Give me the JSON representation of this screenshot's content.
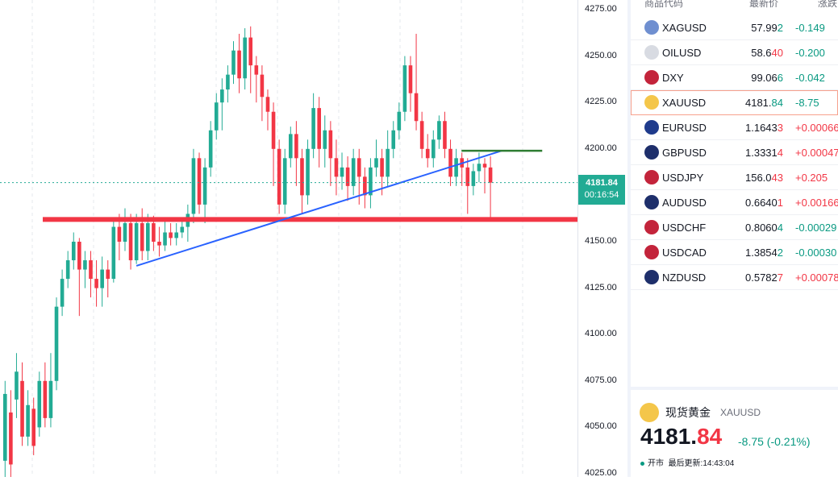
{
  "chart": {
    "price_axis": [
      "4275.00",
      "4250.00",
      "4225.00",
      "4200.00",
      "4175.00",
      "4150.00",
      "4125.00",
      "4100.00",
      "4075.00",
      "4050.00",
      "4025.00"
    ],
    "current_price": "4181.84",
    "countdown": "00:16:54",
    "colors": {
      "up": "#f23645",
      "down": "#22ab94",
      "support": "#f23645",
      "trendline": "#2962ff",
      "resistance": "#2e7d32"
    },
    "support_level": 4162,
    "resistance_level": 4199,
    "trendline": {
      "from": {
        "bar": 23,
        "price": 4137
      },
      "to": {
        "bar": 87,
        "price": 4199
      }
    },
    "candles": [
      [
        4032,
        4068,
        4018,
        4075
      ],
      [
        4058,
        4030,
        4020,
        4070
      ],
      [
        4065,
        4080,
        4055,
        4090
      ],
      [
        4075,
        4045,
        4040,
        4085
      ],
      [
        4045,
        4062,
        4040,
        4070
      ],
      [
        4060,
        4040,
        4035,
        4066
      ],
      [
        4050,
        4075,
        4045,
        4080
      ],
      [
        4075,
        4055,
        4050,
        4085
      ],
      [
        4055,
        4075,
        4050,
        4090
      ],
      [
        4075,
        4115,
        4070,
        4120
      ],
      [
        4115,
        4130,
        4110,
        4135
      ],
      [
        4130,
        4140,
        4125,
        4145
      ],
      [
        4140,
        4150,
        4135,
        4155
      ],
      [
        4150,
        4135,
        4110,
        4152
      ],
      [
        4135,
        4140,
        4125,
        4145
      ],
      [
        4140,
        4130,
        4120,
        4145
      ],
      [
        4130,
        4125,
        4115,
        4140
      ],
      [
        4125,
        4135,
        4115,
        4142
      ],
      [
        4135,
        4130,
        4120,
        4140
      ],
      [
        4130,
        4158,
        4128,
        4162
      ],
      [
        4158,
        4150,
        4140,
        4165
      ],
      [
        4150,
        4160,
        4145,
        4168
      ],
      [
        4160,
        4140,
        4135,
        4165
      ],
      [
        4140,
        4160,
        4138,
        4165
      ],
      [
        4160,
        4145,
        4140,
        4168
      ],
      [
        4145,
        4160,
        4140,
        4165
      ],
      [
        4160,
        4150,
        4145,
        4164
      ],
      [
        4150,
        4148,
        4142,
        4158
      ],
      [
        4148,
        4155,
        4145,
        4162
      ],
      [
        4155,
        4152,
        4148,
        4160
      ],
      [
        4152,
        4155,
        4148,
        4160
      ],
      [
        4155,
        4158,
        4152,
        4162
      ],
      [
        4158,
        4165,
        4150,
        4170
      ],
      [
        4165,
        4195,
        4160,
        4200
      ],
      [
        4195,
        4170,
        4165,
        4198
      ],
      [
        4170,
        4190,
        4160,
        4195
      ],
      [
        4190,
        4210,
        4185,
        4215
      ],
      [
        4210,
        4225,
        4205,
        4230
      ],
      [
        4225,
        4232,
        4210,
        4238
      ],
      [
        4232,
        4240,
        4225,
        4245
      ],
      [
        4240,
        4253,
        4235,
        4258
      ],
      [
        4253,
        4238,
        4230,
        4262
      ],
      [
        4238,
        4260,
        4232,
        4265
      ],
      [
        4260,
        4245,
        4230,
        4266
      ],
      [
        4245,
        4240,
        4225,
        4250
      ],
      [
        4240,
        4228,
        4215,
        4245
      ],
      [
        4228,
        4220,
        4210,
        4232
      ],
      [
        4220,
        4200,
        4180,
        4225
      ],
      [
        4200,
        4170,
        4165,
        4205
      ],
      [
        4170,
        4195,
        4165,
        4200
      ],
      [
        4195,
        4208,
        4190,
        4212
      ],
      [
        4208,
        4195,
        4180,
        4215
      ],
      [
        4195,
        4175,
        4165,
        4200
      ],
      [
        4175,
        4200,
        4170,
        4205
      ],
      [
        4200,
        4222,
        4195,
        4230
      ],
      [
        4222,
        4200,
        4190,
        4228
      ],
      [
        4200,
        4210,
        4190,
        4218
      ],
      [
        4210,
        4195,
        4180,
        4215
      ],
      [
        4195,
        4185,
        4175,
        4205
      ],
      [
        4185,
        4190,
        4178,
        4198
      ],
      [
        4190,
        4180,
        4172,
        4196
      ],
      [
        4180,
        4195,
        4175,
        4200
      ],
      [
        4195,
        4185,
        4170,
        4200
      ],
      [
        4185,
        4175,
        4168,
        4190
      ],
      [
        4175,
        4190,
        4168,
        4195
      ],
      [
        4190,
        4195,
        4185,
        4205
      ],
      [
        4195,
        4185,
        4175,
        4200
      ],
      [
        4185,
        4200,
        4180,
        4210
      ],
      [
        4200,
        4210,
        4195,
        4215
      ],
      [
        4210,
        4220,
        4205,
        4225
      ],
      [
        4220,
        4245,
        4215,
        4250
      ],
      [
        4245,
        4230,
        4220,
        4250
      ],
      [
        4230,
        4215,
        4210,
        4262
      ],
      [
        4215,
        4200,
        4195,
        4220
      ],
      [
        4200,
        4195,
        4190,
        4208
      ],
      [
        4195,
        4205,
        4190,
        4210
      ],
      [
        4205,
        4215,
        4200,
        4218
      ],
      [
        4215,
        4200,
        4195,
        4220
      ],
      [
        4200,
        4185,
        4180,
        4205
      ],
      [
        4185,
        4195,
        4180,
        4200
      ],
      [
        4195,
        4190,
        4180,
        4198
      ],
      [
        4190,
        4180,
        4165,
        4195
      ],
      [
        4180,
        4188,
        4175,
        4192
      ],
      [
        4188,
        4192,
        4182,
        4198
      ],
      [
        4192,
        4190,
        4176,
        4195
      ],
      [
        4190,
        4181.84,
        4163,
        4196
      ]
    ]
  },
  "watchlist": {
    "headers": {
      "symbol": "商品代码",
      "last": "最新价",
      "change": "涨跌"
    },
    "rows": [
      {
        "symbol": "XAGUSD",
        "last_main": "57.99",
        "last_tail": "2",
        "change": "-0.149",
        "dir": "down",
        "icon": "silver-icon",
        "icon_color": "#6f8fd0"
      },
      {
        "symbol": "OILUSD",
        "last_main": "58.6",
        "last_tail": "40",
        "change": "-0.200",
        "dir": "down",
        "icon": "oil-icon",
        "icon_color": "#d8dbe2",
        "tail_dir": "up"
      },
      {
        "symbol": "DXY",
        "last_main": "99.06",
        "last_tail": "6",
        "change": "-0.042",
        "dir": "down",
        "icon": "us-flag-icon",
        "icon_color": "#c3243b"
      },
      {
        "symbol": "XAUUSD",
        "last_main": "4181.",
        "last_tail": "84",
        "change": "-8.75",
        "dir": "down",
        "icon": "gold-icon",
        "icon_color": "#f4c64a",
        "selected": true
      },
      {
        "symbol": "EURUSD",
        "last_main": "1.1643",
        "last_tail": "3",
        "change": "+0.00066",
        "dir": "up",
        "icon": "eu-flag-icon",
        "icon_color": "#1f3b8c"
      },
      {
        "symbol": "GBPUSD",
        "last_main": "1.3331",
        "last_tail": "4",
        "change": "+0.00047",
        "dir": "up",
        "icon": "uk-flag-icon",
        "icon_color": "#1e2f6b"
      },
      {
        "symbol": "USDJPY",
        "last_main": "156.0",
        "last_tail": "43",
        "change": "+0.205",
        "dir": "up",
        "icon": "us-flag-icon",
        "icon_color": "#c3243b"
      },
      {
        "symbol": "AUDUSD",
        "last_main": "0.6640",
        "last_tail": "1",
        "change": "+0.00166",
        "dir": "up",
        "icon": "au-flag-icon",
        "icon_color": "#1e2f6b"
      },
      {
        "symbol": "USDCHF",
        "last_main": "0.8060",
        "last_tail": "4",
        "change": "-0.00029",
        "dir": "down",
        "icon": "us-flag-icon",
        "icon_color": "#c3243b"
      },
      {
        "symbol": "USDCAD",
        "last_main": "1.3854",
        "last_tail": "2",
        "change": "-0.00030",
        "dir": "down",
        "icon": "us-flag-icon",
        "icon_color": "#c3243b"
      },
      {
        "symbol": "NZDUSD",
        "last_main": "0.5782",
        "last_tail": "7",
        "change": "+0.00078",
        "dir": "up",
        "icon": "nz-flag-icon",
        "icon_color": "#1e2f6b"
      }
    ]
  },
  "detail": {
    "name": "现货黄金",
    "code": "XAUUSD",
    "price_int": "4181.",
    "price_frac": "84",
    "change": "-8.75 (-0.21%)",
    "status": "开市",
    "updated": "最后更新:14:43:04"
  }
}
